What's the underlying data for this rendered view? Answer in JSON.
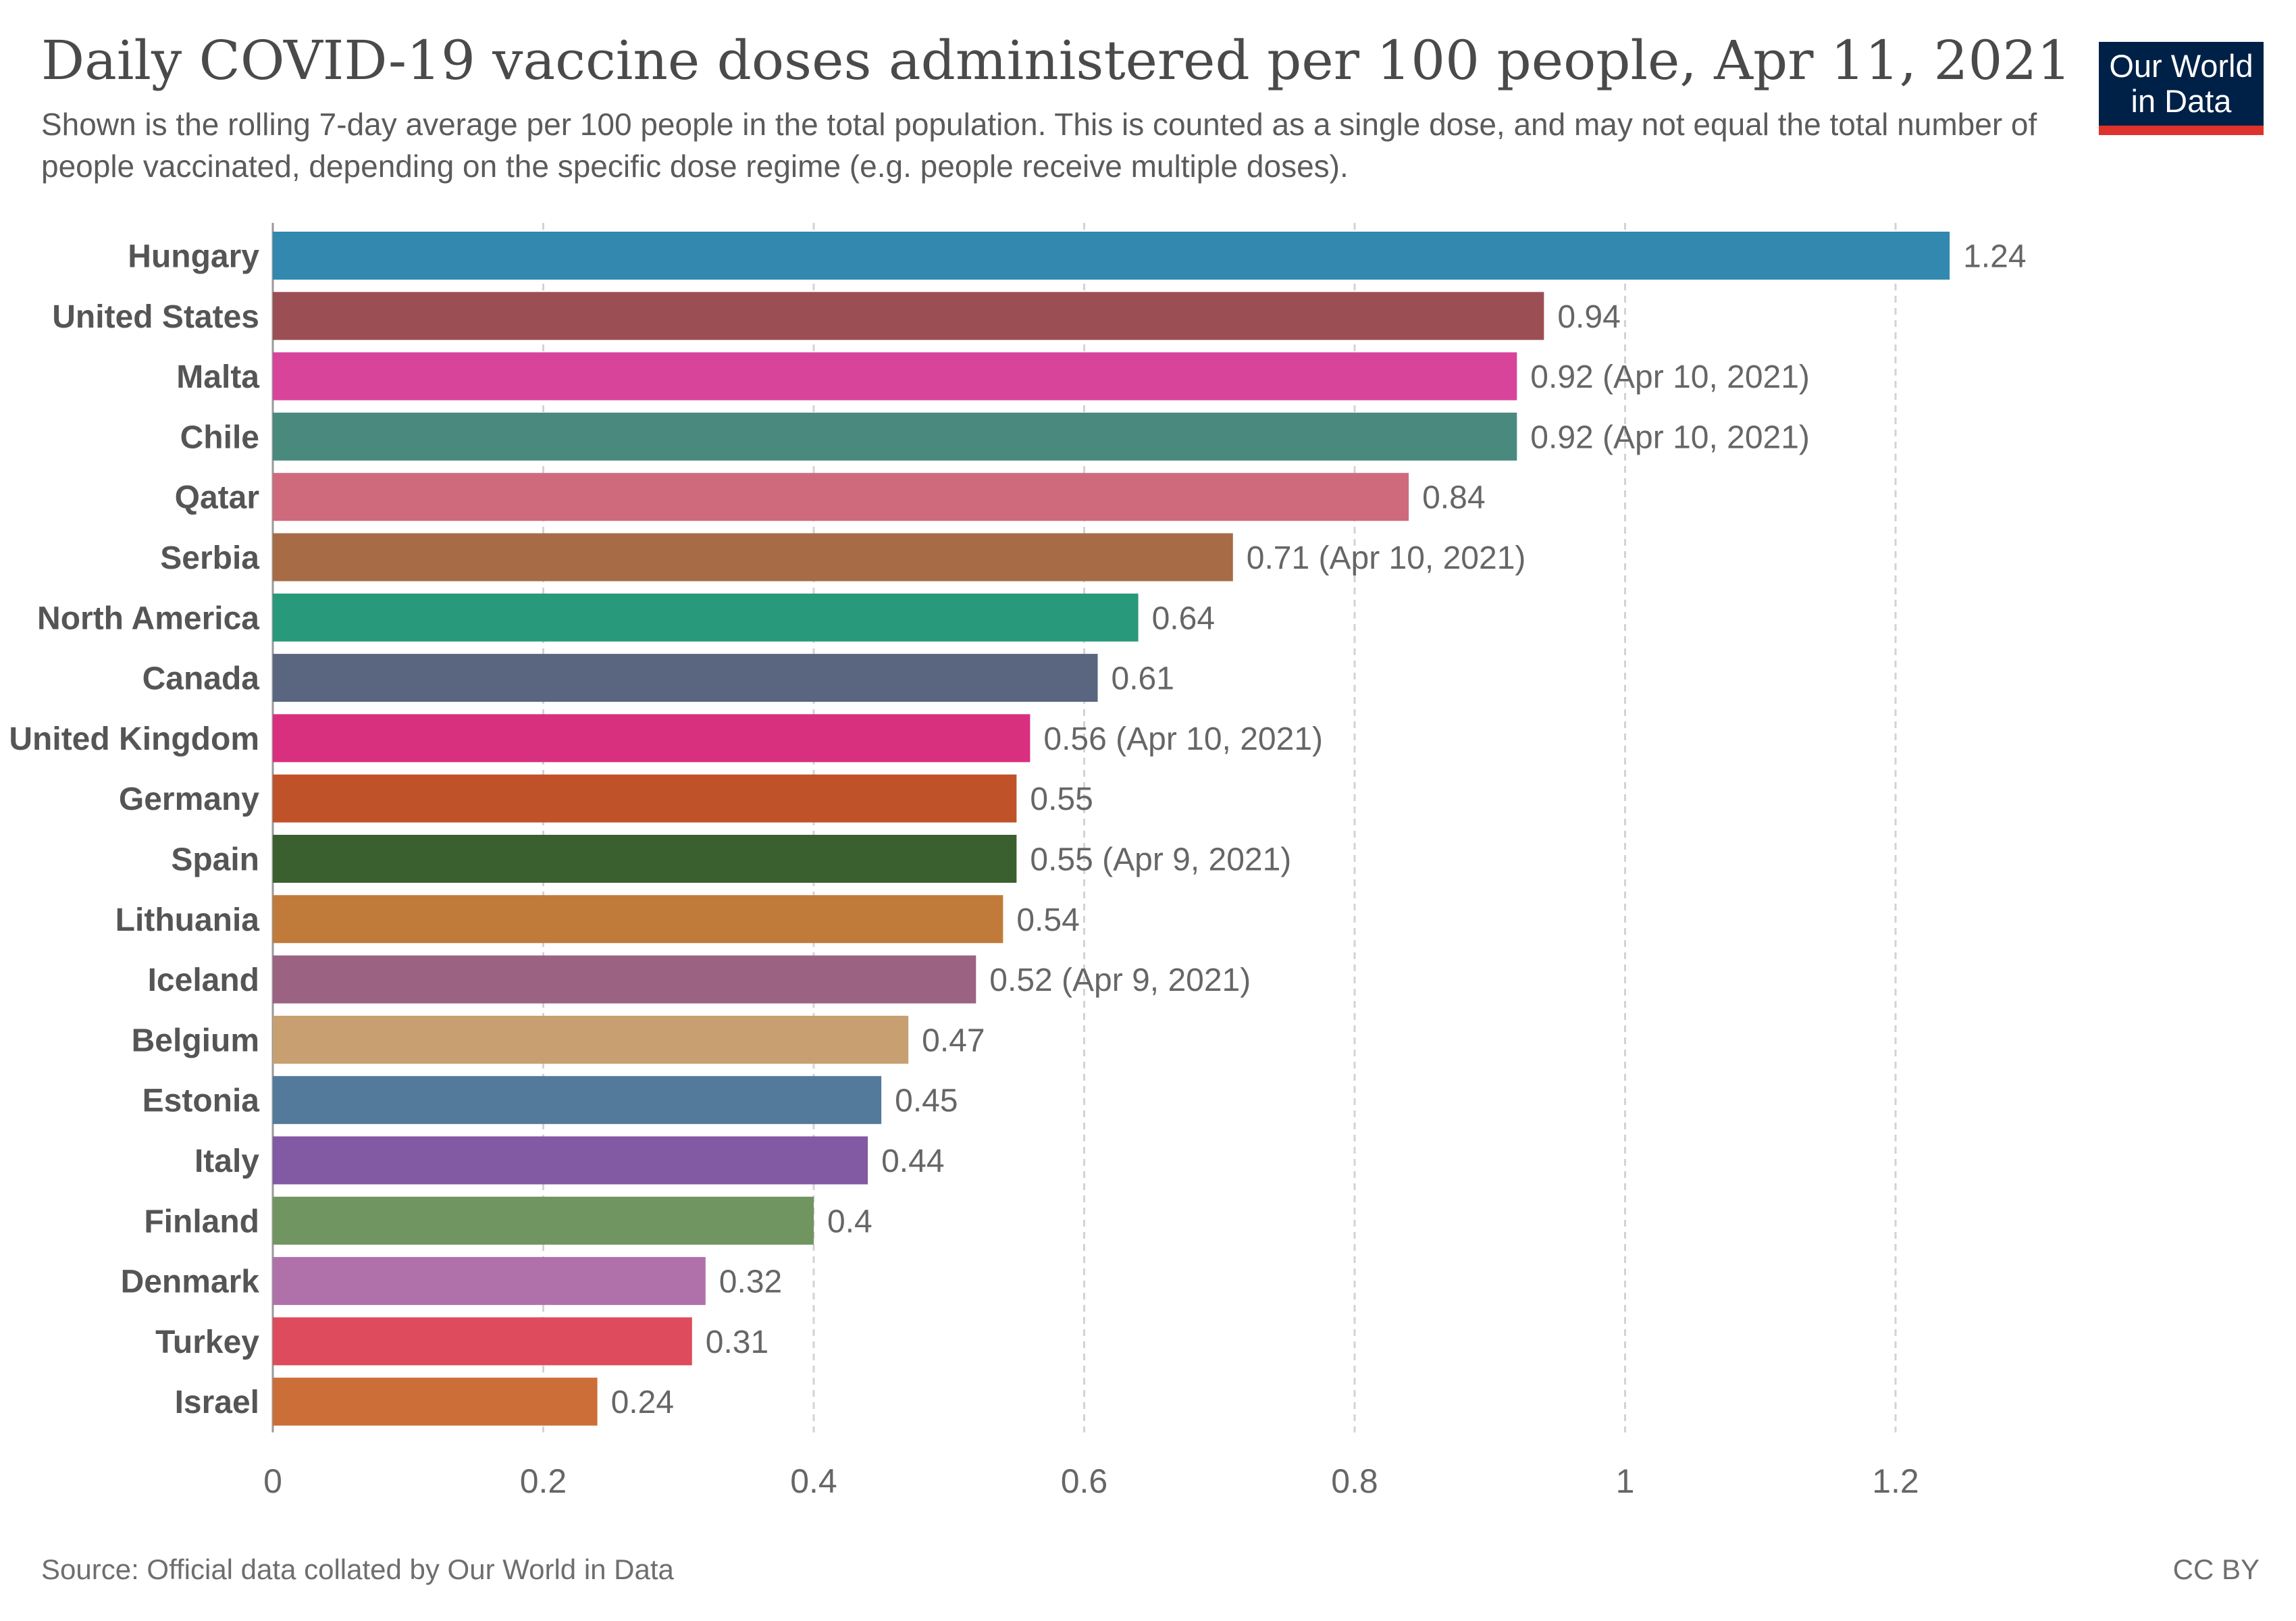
{
  "header": {
    "title": "Daily COVID-19 vaccine doses administered per 100 people, Apr 11, 2021",
    "subtitle": "Shown is the rolling 7-day average per 100 people in the total population. This is counted as a single dose, and may not equal the total number of people vaccinated, depending on the specific dose regime (e.g. people receive multiple doses)."
  },
  "logo": {
    "line1": "Our World",
    "line2": "in Data"
  },
  "footer": {
    "source": "Source: Official data collated by Our World in Data",
    "license": "CC BY"
  },
  "chart_data": {
    "type": "bar",
    "orientation": "horizontal",
    "title": "Daily COVID-19 vaccine doses administered per 100 people, Apr 11, 2021",
    "xlabel": "",
    "ylabel": "",
    "xlim": [
      0,
      1.24
    ],
    "xticks": [
      0,
      0.2,
      0.4,
      0.6,
      0.8,
      1,
      1.2
    ],
    "xtick_labels": [
      "0",
      "0.2",
      "0.4",
      "0.6",
      "0.8",
      "1",
      "1.2"
    ],
    "grid": "vertical dashed",
    "categories": [
      "Hungary",
      "United States",
      "Malta",
      "Chile",
      "Qatar",
      "Serbia",
      "North America",
      "Canada",
      "United Kingdom",
      "Germany",
      "Spain",
      "Lithuania",
      "Iceland",
      "Belgium",
      "Estonia",
      "Italy",
      "Finland",
      "Denmark",
      "Turkey",
      "Israel"
    ],
    "values": [
      1.24,
      0.94,
      0.92,
      0.92,
      0.84,
      0.71,
      0.64,
      0.61,
      0.56,
      0.55,
      0.55,
      0.54,
      0.52,
      0.47,
      0.45,
      0.44,
      0.4,
      0.32,
      0.31,
      0.24
    ],
    "value_labels": [
      "1.24",
      "0.94",
      "0.92 (Apr 10, 2021)",
      "0.92 (Apr 10, 2021)",
      "0.84",
      "0.71 (Apr 10, 2021)",
      "0.64",
      "0.61",
      "0.56 (Apr 10, 2021)",
      "0.55",
      "0.55 (Apr 9, 2021)",
      "0.54",
      "0.52 (Apr 9, 2021)",
      "0.47",
      "0.45",
      "0.44",
      "0.4",
      "0.32",
      "0.31",
      "0.24"
    ],
    "colors": [
      "#3288ae",
      "#9b4f54",
      "#d8449a",
      "#4a8a7e",
      "#cf6a7c",
      "#a76c45",
      "#28997a",
      "#5a6680",
      "#d8307f",
      "#c0522a",
      "#3b6030",
      "#c07a3a",
      "#9c6281",
      "#c89f70",
      "#537a9b",
      "#8259a3",
      "#709560",
      "#b071aa",
      "#de4b5c",
      "#cc6e37"
    ]
  }
}
